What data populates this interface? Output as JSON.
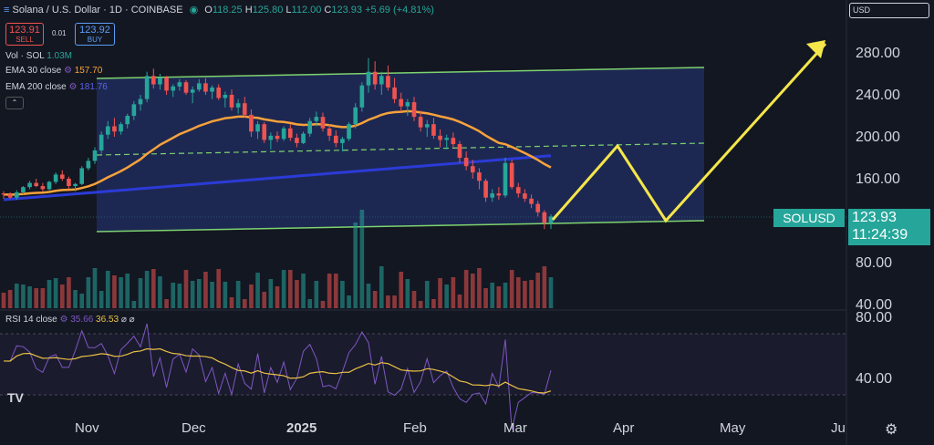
{
  "header": {
    "title": "Solana / U.S. Dollar · 1D · COINBASE",
    "open_key": "O",
    "open": "118.25",
    "high_key": "H",
    "high": "125.80",
    "low_key": "L",
    "low": "112.00",
    "close_key": "C",
    "close": "123.93",
    "change": "+5.69 (+4.81%)"
  },
  "trade": {
    "sell_price": "123.91",
    "sell_label": "SELL",
    "spread": "0.01",
    "buy_price": "123.92",
    "buy_label": "BUY"
  },
  "indicators": {
    "vol_label": "Vol · SOL",
    "vol_value": "1.03M",
    "ema30_label": "EMA 30 close",
    "ema30_value": "157.70",
    "ema200_label": "EMA 200 close",
    "ema200_value": "181.76",
    "rsi_label": "RSI 14 close",
    "rsi_value": "35.66",
    "rsi_ma_value": "36.53"
  },
  "currency_select": "USD",
  "price_tag": {
    "symbol": "SOLUSD",
    "price": "123.93",
    "countdown": "11:24:39"
  },
  "y_axis": {
    "ticks": [
      "280.00",
      "240.00",
      "200.00",
      "160.00",
      "80.00",
      "40.00"
    ]
  },
  "rsi_axis": {
    "ticks": [
      "80.00",
      "40.00"
    ]
  },
  "x_axis": {
    "labels": [
      "Nov",
      "Dec",
      "2025",
      "Feb",
      "Mar",
      "Apr",
      "May",
      "Ju"
    ]
  },
  "icons": [
    "settings-icon",
    "tradingview-logo-icon",
    "collapse-icon",
    "eye-icon",
    "flag-icon"
  ],
  "colors": {
    "up": "#26a69a",
    "down": "#ef5350",
    "ema30": "#f7a23b",
    "ema200": "#2b3bd6",
    "channel": "#7ed36f",
    "projection": "#f5e64a",
    "rsi": "#7e57c2",
    "rsi_ma": "#e9c046"
  },
  "chart_data": {
    "type": "candlestick",
    "x_unit": "daily candles, approx. Oct 2024 – Mar 2025",
    "price_axis_ticks": [
      280,
      240,
      200,
      160
    ],
    "candles_ohlc": [
      [
        146,
        148,
        141,
        145
      ],
      [
        145,
        147,
        141,
        142
      ],
      [
        142,
        149,
        140,
        147
      ],
      [
        147,
        153,
        145,
        152
      ],
      [
        152,
        158,
        150,
        156
      ],
      [
        156,
        160,
        152,
        153
      ],
      [
        153,
        156,
        148,
        150
      ],
      [
        150,
        158,
        149,
        157
      ],
      [
        157,
        166,
        155,
        164
      ],
      [
        164,
        168,
        158,
        160
      ],
      [
        160,
        162,
        150,
        153
      ],
      [
        153,
        156,
        148,
        155
      ],
      [
        155,
        172,
        154,
        170
      ],
      [
        170,
        180,
        168,
        177
      ],
      [
        177,
        190,
        174,
        187
      ],
      [
        187,
        205,
        184,
        202
      ],
      [
        202,
        215,
        198,
        210
      ],
      [
        210,
        218,
        200,
        205
      ],
      [
        205,
        214,
        202,
        212
      ],
      [
        212,
        222,
        208,
        220
      ],
      [
        220,
        234,
        216,
        231
      ],
      [
        231,
        240,
        225,
        236
      ],
      [
        236,
        262,
        233,
        258
      ],
      [
        258,
        265,
        246,
        250
      ],
      [
        250,
        260,
        245,
        256
      ],
      [
        256,
        258,
        240,
        244
      ],
      [
        244,
        250,
        238,
        248
      ],
      [
        248,
        255,
        244,
        252
      ],
      [
        252,
        254,
        240,
        242
      ],
      [
        242,
        248,
        232,
        245
      ],
      [
        245,
        255,
        243,
        251
      ],
      [
        251,
        256,
        240,
        243
      ],
      [
        243,
        249,
        236,
        247
      ],
      [
        247,
        250,
        235,
        237
      ],
      [
        237,
        243,
        228,
        240
      ],
      [
        240,
        245,
        225,
        228
      ],
      [
        228,
        236,
        222,
        232
      ],
      [
        232,
        238,
        218,
        221
      ],
      [
        221,
        226,
        200,
        205
      ],
      [
        205,
        215,
        198,
        212
      ],
      [
        212,
        214,
        194,
        197
      ],
      [
        197,
        204,
        188,
        201
      ],
      [
        201,
        205,
        195,
        198
      ],
      [
        198,
        210,
        196,
        208
      ],
      [
        208,
        212,
        196,
        199
      ],
      [
        199,
        203,
        190,
        194
      ],
      [
        194,
        205,
        193,
        203
      ],
      [
        203,
        218,
        200,
        215
      ],
      [
        215,
        224,
        210,
        219
      ],
      [
        219,
        223,
        205,
        208
      ],
      [
        208,
        212,
        196,
        201
      ],
      [
        201,
        206,
        190,
        194
      ],
      [
        194,
        200,
        186,
        198
      ],
      [
        198,
        214,
        196,
        212
      ],
      [
        212,
        232,
        208,
        228
      ],
      [
        228,
        252,
        224,
        249
      ],
      [
        249,
        275,
        242,
        262
      ],
      [
        262,
        272,
        245,
        250
      ],
      [
        250,
        262,
        240,
        258
      ],
      [
        258,
        268,
        244,
        247
      ],
      [
        247,
        256,
        232,
        236
      ],
      [
        236,
        242,
        224,
        229
      ],
      [
        229,
        236,
        220,
        233
      ],
      [
        233,
        238,
        215,
        219
      ],
      [
        219,
        225,
        205,
        209
      ],
      [
        209,
        216,
        200,
        212
      ],
      [
        212,
        218,
        198,
        201
      ],
      [
        201,
        207,
        190,
        197
      ],
      [
        197,
        202,
        188,
        199
      ],
      [
        199,
        204,
        190,
        193
      ],
      [
        193,
        196,
        175,
        180
      ],
      [
        180,
        186,
        168,
        172
      ],
      [
        172,
        178,
        160,
        166
      ],
      [
        166,
        170,
        150,
        158
      ],
      [
        158,
        160,
        138,
        142
      ],
      [
        142,
        150,
        138,
        146
      ],
      [
        146,
        152,
        140,
        144
      ],
      [
        144,
        180,
        142,
        175
      ],
      [
        175,
        178,
        150,
        152
      ],
      [
        152,
        156,
        142,
        146
      ],
      [
        146,
        150,
        138,
        141
      ],
      [
        141,
        145,
        132,
        136
      ],
      [
        136,
        139,
        124,
        128
      ],
      [
        128,
        130,
        112,
        118
      ],
      [
        118,
        126,
        112,
        124
      ]
    ]
  }
}
